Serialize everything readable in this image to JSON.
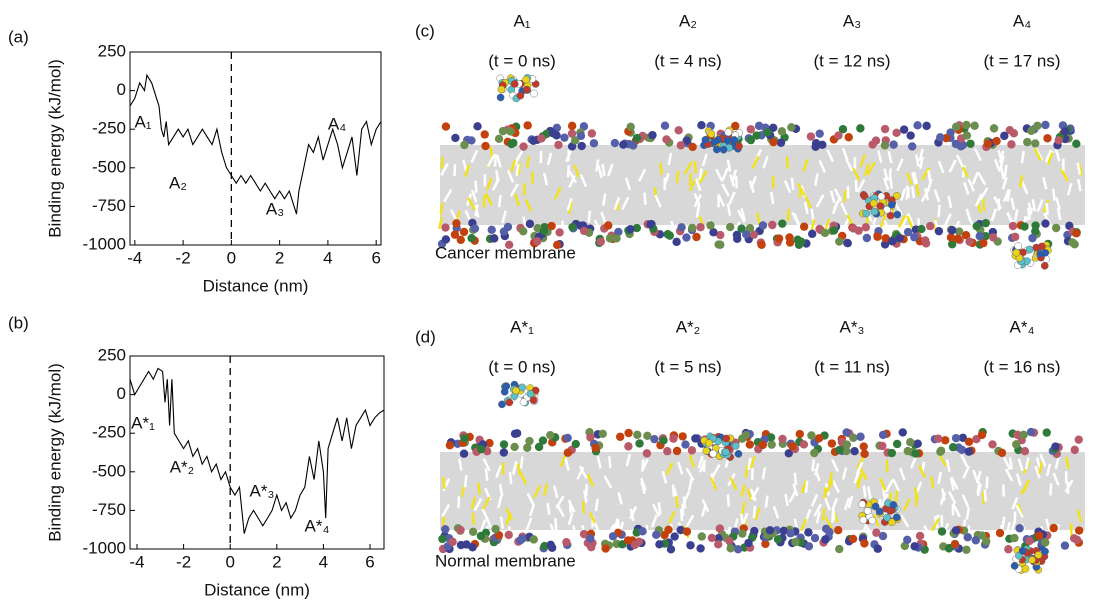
{
  "chart_data": [
    {
      "type": "line",
      "panel": "(a)",
      "xlabel": "Distance (nm)",
      "ylabel": "Binding energy (kJ/mol)",
      "xlim": [
        -4.2,
        6.2
      ],
      "ylim": [
        -1000,
        250
      ],
      "xticks": [
        -4,
        -2,
        0,
        2,
        4,
        6
      ],
      "yticks": [
        250,
        0,
        -250,
        -500,
        -750,
        -1000
      ],
      "vline": 0,
      "color": "#000000",
      "x": [
        -4.2,
        -4,
        -3.8,
        -3.6,
        -3.5,
        -3.3,
        -3.1,
        -3,
        -2.9,
        -2.8,
        -2.7,
        -2.6,
        -2.4,
        -2.2,
        -2,
        -1.8,
        -1.6,
        -1.4,
        -1.2,
        -1,
        -0.8,
        -0.6,
        -0.4,
        -0.2,
        0,
        0.2,
        0.4,
        0.6,
        0.8,
        1,
        1.2,
        1.4,
        1.6,
        1.8,
        2,
        2.2,
        2.4,
        2.6,
        2.7,
        2.8,
        3,
        3.2,
        3.4,
        3.6,
        3.8,
        4,
        4.2,
        4.4,
        4.6,
        4.8,
        5,
        5.2,
        5.4,
        5.6,
        5.8,
        6,
        6.2
      ],
      "values": [
        -100,
        -50,
        50,
        0,
        100,
        50,
        -50,
        -100,
        -250,
        -300,
        -200,
        -350,
        -300,
        -250,
        -300,
        -250,
        -350,
        -300,
        -250,
        -300,
        -350,
        -250,
        -400,
        -500,
        -550,
        -600,
        -550,
        -600,
        -550,
        -600,
        -650,
        -600,
        -650,
        -700,
        -650,
        -700,
        -650,
        -750,
        -800,
        -650,
        -500,
        -350,
        -400,
        -300,
        -450,
        -350,
        -250,
        -350,
        -500,
        -400,
        -300,
        -550,
        -250,
        -200,
        -350,
        -250,
        -200
      ],
      "annotations": [
        "A₁",
        "A₂",
        "A₃",
        "A₄"
      ]
    },
    {
      "type": "line",
      "panel": "(b)",
      "xlabel": "Distance (nm)",
      "ylabel": "Binding energy (kJ/mol)",
      "xlim": [
        -4.3,
        6.6
      ],
      "ylim": [
        -1000,
        250
      ],
      "xticks": [
        -4,
        -2,
        0,
        2,
        4,
        6
      ],
      "yticks": [
        250,
        0,
        -250,
        -500,
        -750,
        -1000
      ],
      "vline": 0,
      "color": "#000000",
      "x": [
        -4.3,
        -4.1,
        -3.9,
        -3.7,
        -3.5,
        -3.3,
        -3.1,
        -2.9,
        -2.8,
        -2.7,
        -2.6,
        -2.5,
        -2.4,
        -2.2,
        -2,
        -1.8,
        -1.6,
        -1.4,
        -1.2,
        -1,
        -0.8,
        -0.6,
        -0.4,
        -0.2,
        0,
        0.2,
        0.4,
        0.6,
        0.8,
        1,
        1.2,
        1.4,
        1.6,
        1.8,
        2,
        2.2,
        2.4,
        2.6,
        2.8,
        3,
        3.2,
        3.4,
        3.6,
        3.8,
        4,
        4.1,
        4.2,
        4.4,
        4.6,
        4.8,
        5,
        5.2,
        5.4,
        5.6,
        5.8,
        6,
        6.2,
        6.4,
        6.6
      ],
      "values": [
        100,
        0,
        50,
        100,
        150,
        100,
        170,
        150,
        -50,
        100,
        -200,
        100,
        -250,
        -300,
        -350,
        -300,
        -400,
        -350,
        -450,
        -400,
        -500,
        -450,
        -550,
        -500,
        -600,
        -650,
        -600,
        -900,
        -800,
        -750,
        -800,
        -850,
        -800,
        -750,
        -650,
        -750,
        -700,
        -800,
        -750,
        -650,
        -600,
        -400,
        -550,
        -300,
        -500,
        -800,
        -350,
        -250,
        -150,
        -300,
        -150,
        -350,
        -200,
        -150,
        -100,
        -200,
        -150,
        -120,
        -100
      ],
      "annotations": [
        "A*₁",
        "A*₂",
        "A*₃",
        "A*₄"
      ]
    }
  ],
  "snapshots": [
    {
      "panel": "(c)",
      "caption": "Cancer membrane",
      "states": [
        {
          "label": "A₁",
          "time": "(t = 0 ns)"
        },
        {
          "label": "A₂",
          "time": "(t =  4 ns)"
        },
        {
          "label": "A₃",
          "time": "(t = 12 ns)"
        },
        {
          "label": "A₄",
          "time": "(t = 17 ns)"
        }
      ]
    },
    {
      "panel": "(d)",
      "caption": "Normal membrane",
      "states": [
        {
          "label": "A*₁",
          "time": "(t = 0 ns)"
        },
        {
          "label": "A*₂",
          "time": "(t = 5 ns)"
        },
        {
          "label": "A*₃",
          "time": "(t = 11 ns)"
        },
        {
          "label": "A*₄",
          "time": "(t = 16 ns)"
        }
      ]
    }
  ]
}
